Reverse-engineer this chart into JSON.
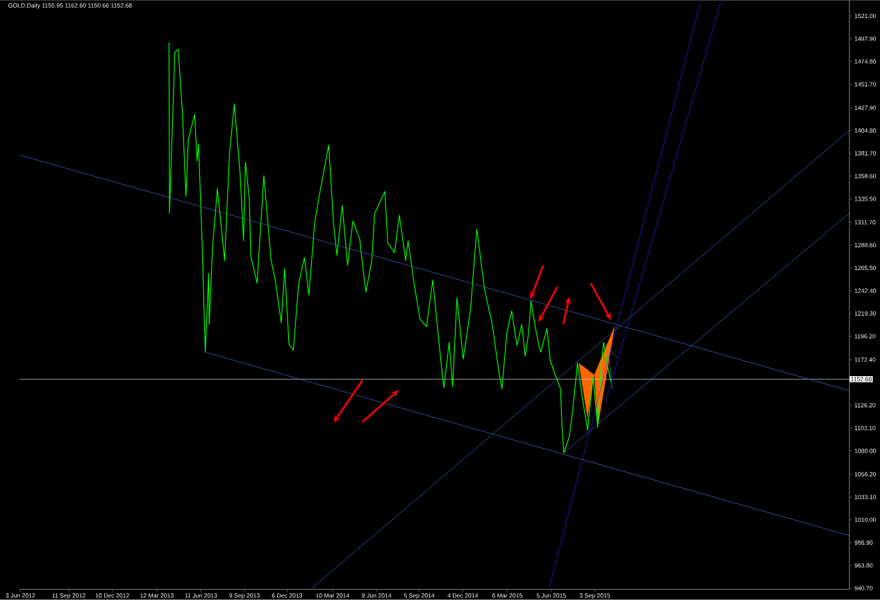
{
  "chart_data": {
    "type": "line",
    "title": "GOLD,Daily 1155.95 1162.60 1150.66 1152.68",
    "xlim": [
      "2012-06-01",
      "2017-02-10"
    ],
    "ylim": [
      939.5,
      1537
    ],
    "xticks": [
      {
        "value": "2012-06-03",
        "label": "3 Jun 2012"
      },
      {
        "value": "2012-09-11",
        "label": "11 Sep 2012"
      },
      {
        "value": "2012-12-10",
        "label": "10 Dec 2012"
      },
      {
        "value": "2013-03-12",
        "label": "12 Mar 2013"
      },
      {
        "value": "2013-06-11",
        "label": "11 Jun 2013"
      },
      {
        "value": "2013-09-09",
        "label": "9 Sep 2013"
      },
      {
        "value": "2013-12-06",
        "label": "6 Dec 2013"
      },
      {
        "value": "2014-03-10",
        "label": "10 Mar 2014"
      },
      {
        "value": "2014-06-09",
        "label": "9 Jun 2014"
      },
      {
        "value": "2014-09-05",
        "label": "5 Sep 2014"
      },
      {
        "value": "2014-12-04",
        "label": "4 Dec 2014"
      },
      {
        "value": "2015-03-06",
        "label": "6 Mar 2015"
      },
      {
        "value": "2015-06-05",
        "label": "5 Jun 2015"
      },
      {
        "value": "2015-09-03",
        "label": "3 Sep 2015"
      }
    ],
    "yticks": [
      {
        "value": 1521.0,
        "label": "1521.00"
      },
      {
        "value": 1497.9,
        "label": "1497.90"
      },
      {
        "value": 1474.8,
        "label": "1474.80"
      },
      {
        "value": 1451.7,
        "label": "1451.70"
      },
      {
        "value": 1427.9,
        "label": "1427.90"
      },
      {
        "value": 1404.8,
        "label": "1404.80"
      },
      {
        "value": 1381.7,
        "label": "1381.70"
      },
      {
        "value": 1358.6,
        "label": "1358.60"
      },
      {
        "value": 1335.5,
        "label": "1335.50"
      },
      {
        "value": 1311.7,
        "label": "1311.70"
      },
      {
        "value": 1288.6,
        "label": "1288.60"
      },
      {
        "value": 1265.5,
        "label": "1265.50"
      },
      {
        "value": 1242.4,
        "label": "1242.40"
      },
      {
        "value": 1219.3,
        "label": "1219.30"
      },
      {
        "value": 1196.2,
        "label": "1196.20"
      },
      {
        "value": 1172.4,
        "label": "1172.40"
      },
      {
        "value": 1126.2,
        "label": "1126.20"
      },
      {
        "value": 1103.1,
        "label": "1103.10"
      },
      {
        "value": 1080.0,
        "label": "1080.00"
      },
      {
        "value": 1056.2,
        "label": "1056.20"
      },
      {
        "value": 1033.1,
        "label": "1033.10"
      },
      {
        "value": 1010.0,
        "label": "1010.00"
      },
      {
        "value": 986.9,
        "label": "986.90"
      },
      {
        "value": 963.8,
        "label": "963.80"
      },
      {
        "value": 940.7,
        "label": "940.70"
      }
    ],
    "series": [
      {
        "color": "#00ff00",
        "x": [
          "2013-04-06",
          "2013-04-07",
          "2013-04-14",
          "2013-04-18",
          "2013-04-25",
          "2013-05-04",
          "2013-05-11",
          "2013-05-16",
          "2013-05-29",
          "2013-06-03",
          "2013-06-06",
          "2013-06-13",
          "2013-06-20",
          "2013-06-27",
          "2013-06-28",
          "2013-07-05",
          "2013-07-15",
          "2013-07-30",
          "2013-08-09",
          "2013-08-19",
          "2013-08-31",
          "2013-09-07",
          "2013-09-11",
          "2013-09-19",
          "2013-09-22",
          "2013-10-05",
          "2013-10-19",
          "2013-11-03",
          "2013-11-11",
          "2013-11-24",
          "2013-12-01",
          "2013-12-10",
          "2013-12-19",
          "2013-12-30",
          "2014-01-11",
          "2014-01-20",
          "2014-02-01",
          "2014-02-11",
          "2014-03-02",
          "2014-03-12",
          "2014-03-19",
          "2014-03-30",
          "2014-04-10",
          "2014-04-21",
          "2014-05-05",
          "2014-05-13",
          "2014-05-18",
          "2014-05-30",
          "2014-06-05",
          "2014-06-26",
          "2014-07-02",
          "2014-07-16",
          "2014-07-26",
          "2014-08-08",
          "2014-08-13",
          "2014-08-26",
          "2014-09-07",
          "2014-09-20",
          "2014-10-03",
          "2014-10-19",
          "2014-10-26",
          "2014-11-06",
          "2014-11-13",
          "2014-11-22",
          "2014-12-05",
          "2014-12-20",
          "2015-01-02",
          "2015-01-18",
          "2015-02-03",
          "2015-02-17",
          "2015-02-23",
          "2015-03-05",
          "2015-03-15",
          "2015-03-26",
          "2015-04-05",
          "2015-04-12",
          "2015-04-19",
          "2015-04-24",
          "2015-05-02",
          "2015-05-09",
          "2015-05-14",
          "2015-05-27",
          "2015-06-03",
          "2015-06-17",
          "2015-06-24",
          "2015-06-27",
          "2015-07-01",
          "2015-07-12",
          "2015-07-19",
          "2015-07-29",
          "2015-08-08",
          "2015-08-19",
          "2015-08-30",
          "2015-09-09",
          "2015-09-16",
          "2015-09-21",
          "2015-09-29",
          "2015-10-06"
        ],
        "values": [
          1494,
          1321,
          1423,
          1484,
          1487,
          1421,
          1338,
          1396,
          1421,
          1374,
          1391,
          1298,
          1180,
          1260,
          1208,
          1286,
          1346,
          1273,
          1381,
          1432,
          1361,
          1293,
          1373,
          1335,
          1278,
          1250,
          1359,
          1273,
          1255,
          1210,
          1265,
          1188,
          1182,
          1250,
          1276,
          1238,
          1311,
          1340,
          1390,
          1311,
          1278,
          1329,
          1268,
          1313,
          1295,
          1260,
          1241,
          1273,
          1321,
          1343,
          1291,
          1281,
          1319,
          1273,
          1293,
          1248,
          1213,
          1206,
          1253,
          1175,
          1144,
          1190,
          1145,
          1235,
          1173,
          1223,
          1305,
          1244,
          1208,
          1159,
          1143,
          1199,
          1222,
          1187,
          1208,
          1176,
          1199,
          1232,
          1208,
          1190,
          1180,
          1204,
          1171,
          1152,
          1143,
          1106,
          1078,
          1094,
          1120,
          1169,
          1134,
          1101,
          1155,
          1104,
          1166,
          1190,
          1166,
          1150
        ]
      },
      {
        "color": "#4a6ee0",
        "x": [
          "2012-06-01",
          "2017-02-10"
        ],
        "values": [
          1380,
          1141
        ]
      },
      {
        "color": "#4a6ee0",
        "x": [
          "2013-06-20",
          "2017-02-10"
        ],
        "values": [
          1180,
          994
        ]
      },
      {
        "color": "#4a6ee0",
        "x": [
          "2014-01-27",
          "2017-02-10"
        ],
        "values": [
          941,
          1405
        ]
      },
      {
        "color": "#4a6ee0",
        "x": [
          "2015-07-01",
          "2017-02-10"
        ],
        "values": [
          1078,
          1321
        ]
      },
      {
        "color": "#1f2cff",
        "x": [
          "2015-06-01",
          "2016-04-08"
        ],
        "values": [
          941,
          1535
        ]
      },
      {
        "color": "#1f2cff",
        "x": [
          "2015-09-25",
          "2016-05-20"
        ],
        "values": [
          1129,
          1535
        ]
      }
    ],
    "ref_lines": [
      {
        "axis": "y",
        "value": 1152.68,
        "label": "1152.68",
        "color": "#c0c0c0"
      }
    ]
  }
}
